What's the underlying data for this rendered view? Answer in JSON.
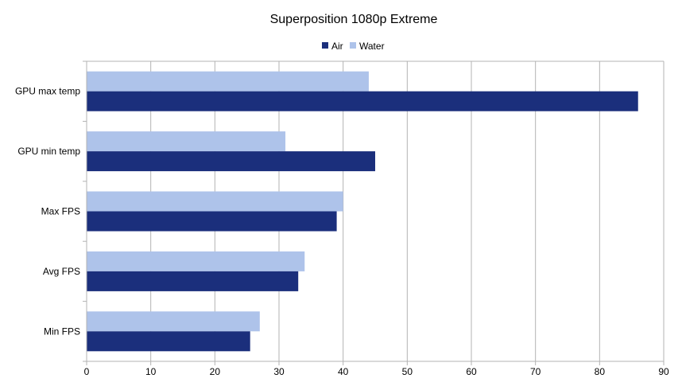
{
  "chart_data": {
    "type": "bar",
    "orientation": "horizontal",
    "title": "Superposition 1080p Extreme",
    "categories": [
      "GPU max temp",
      "GPU min temp",
      "Max FPS",
      "Avg FPS",
      "Min FPS"
    ],
    "series": [
      {
        "name": "Air",
        "color": "#1b2f7c",
        "values": [
          86,
          45,
          39,
          33,
          25.5
        ]
      },
      {
        "name": "Water",
        "color": "#aec3ea",
        "values": [
          44,
          31,
          40,
          34,
          27
        ]
      }
    ],
    "xlim": [
      0,
      90
    ],
    "xticks": [
      0,
      10,
      20,
      30,
      40,
      50,
      60,
      70,
      80,
      90
    ],
    "xlabel": "",
    "ylabel": "",
    "grid": true,
    "legend": "top-center"
  }
}
